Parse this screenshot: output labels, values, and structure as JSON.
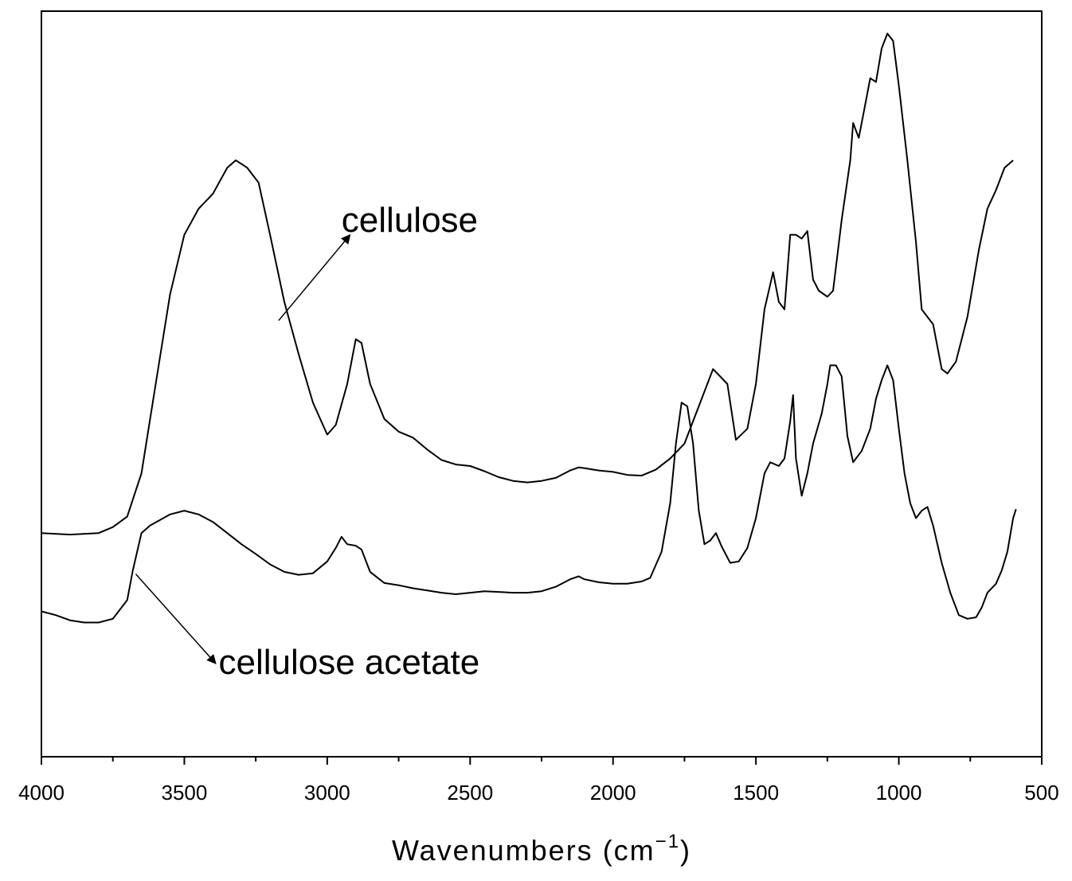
{
  "chart_data": {
    "type": "line",
    "xlabel": "Wavenumbers (cm",
    "xlabel_superscript": "−1",
    "xlabel_suffix": ")",
    "ylabel": "",
    "xlim": [
      4000,
      500
    ],
    "x_reversed": true,
    "ylim": [
      0,
      1
    ],
    "y_ticks_shown": false,
    "grid": false,
    "x_ticks": [
      4000,
      3500,
      3000,
      2500,
      2000,
      1500,
      1000,
      500
    ],
    "x_tick_labels": [
      "4000",
      "3500",
      "3000",
      "2500",
      "2000",
      "1500",
      "1000",
      "500"
    ],
    "series": [
      {
        "name": "cellulose",
        "points": [
          [
            4000,
            0.3
          ],
          [
            3900,
            0.298
          ],
          [
            3800,
            0.3
          ],
          [
            3750,
            0.308
          ],
          [
            3700,
            0.322
          ],
          [
            3650,
            0.38
          ],
          [
            3600,
            0.5
          ],
          [
            3550,
            0.62
          ],
          [
            3500,
            0.7
          ],
          [
            3450,
            0.735
          ],
          [
            3400,
            0.755
          ],
          [
            3350,
            0.79
          ],
          [
            3320,
            0.8
          ],
          [
            3280,
            0.79
          ],
          [
            3240,
            0.77
          ],
          [
            3200,
            0.7
          ],
          [
            3150,
            0.61
          ],
          [
            3100,
            0.54
          ],
          [
            3050,
            0.475
          ],
          [
            3000,
            0.432
          ],
          [
            2970,
            0.445
          ],
          [
            2930,
            0.5
          ],
          [
            2900,
            0.56
          ],
          [
            2880,
            0.555
          ],
          [
            2850,
            0.5
          ],
          [
            2800,
            0.453
          ],
          [
            2750,
            0.436
          ],
          [
            2700,
            0.428
          ],
          [
            2650,
            0.412
          ],
          [
            2600,
            0.398
          ],
          [
            2550,
            0.392
          ],
          [
            2500,
            0.39
          ],
          [
            2450,
            0.383
          ],
          [
            2400,
            0.375
          ],
          [
            2350,
            0.37
          ],
          [
            2300,
            0.368
          ],
          [
            2250,
            0.37
          ],
          [
            2200,
            0.374
          ],
          [
            2150,
            0.384
          ],
          [
            2120,
            0.388
          ],
          [
            2100,
            0.387
          ],
          [
            2050,
            0.384
          ],
          [
            2000,
            0.382
          ],
          [
            1950,
            0.378
          ],
          [
            1900,
            0.377
          ],
          [
            1850,
            0.385
          ],
          [
            1800,
            0.4
          ],
          [
            1750,
            0.42
          ],
          [
            1700,
            0.47
          ],
          [
            1650,
            0.52
          ],
          [
            1600,
            0.5
          ],
          [
            1570,
            0.425
          ],
          [
            1530,
            0.44
          ],
          [
            1500,
            0.5
          ],
          [
            1470,
            0.6
          ],
          [
            1440,
            0.65
          ],
          [
            1420,
            0.61
          ],
          [
            1400,
            0.6
          ],
          [
            1380,
            0.7
          ],
          [
            1360,
            0.7
          ],
          [
            1340,
            0.695
          ],
          [
            1320,
            0.705
          ],
          [
            1300,
            0.64
          ],
          [
            1280,
            0.625
          ],
          [
            1250,
            0.617
          ],
          [
            1230,
            0.625
          ],
          [
            1200,
            0.72
          ],
          [
            1170,
            0.8
          ],
          [
            1160,
            0.85
          ],
          [
            1140,
            0.83
          ],
          [
            1120,
            0.87
          ],
          [
            1100,
            0.91
          ],
          [
            1080,
            0.905
          ],
          [
            1060,
            0.95
          ],
          [
            1040,
            0.97
          ],
          [
            1020,
            0.96
          ],
          [
            1000,
            0.9
          ],
          [
            970,
            0.8
          ],
          [
            940,
            0.69
          ],
          [
            920,
            0.6
          ],
          [
            900,
            0.59
          ],
          [
            880,
            0.58
          ],
          [
            850,
            0.52
          ],
          [
            830,
            0.514
          ],
          [
            800,
            0.53
          ],
          [
            760,
            0.59
          ],
          [
            720,
            0.68
          ],
          [
            690,
            0.735
          ],
          [
            660,
            0.76
          ],
          [
            630,
            0.79
          ],
          [
            600,
            0.8
          ]
        ]
      },
      {
        "name": "cellulose acetate",
        "points": [
          [
            4000,
            0.195
          ],
          [
            3950,
            0.19
          ],
          [
            3900,
            0.183
          ],
          [
            3850,
            0.18
          ],
          [
            3800,
            0.18
          ],
          [
            3750,
            0.185
          ],
          [
            3700,
            0.21
          ],
          [
            3680,
            0.25
          ],
          [
            3650,
            0.3
          ],
          [
            3620,
            0.31
          ],
          [
            3550,
            0.325
          ],
          [
            3500,
            0.33
          ],
          [
            3450,
            0.325
          ],
          [
            3400,
            0.315
          ],
          [
            3350,
            0.3
          ],
          [
            3300,
            0.285
          ],
          [
            3250,
            0.272
          ],
          [
            3200,
            0.258
          ],
          [
            3150,
            0.248
          ],
          [
            3100,
            0.244
          ],
          [
            3050,
            0.246
          ],
          [
            3000,
            0.262
          ],
          [
            2970,
            0.28
          ],
          [
            2950,
            0.295
          ],
          [
            2930,
            0.285
          ],
          [
            2900,
            0.283
          ],
          [
            2880,
            0.278
          ],
          [
            2850,
            0.248
          ],
          [
            2800,
            0.233
          ],
          [
            2750,
            0.23
          ],
          [
            2700,
            0.226
          ],
          [
            2650,
            0.223
          ],
          [
            2600,
            0.22
          ],
          [
            2550,
            0.218
          ],
          [
            2500,
            0.22
          ],
          [
            2450,
            0.222
          ],
          [
            2400,
            0.221
          ],
          [
            2350,
            0.22
          ],
          [
            2300,
            0.22
          ],
          [
            2250,
            0.222
          ],
          [
            2200,
            0.228
          ],
          [
            2150,
            0.238
          ],
          [
            2120,
            0.242
          ],
          [
            2100,
            0.238
          ],
          [
            2050,
            0.234
          ],
          [
            2000,
            0.232
          ],
          [
            1950,
            0.232
          ],
          [
            1900,
            0.235
          ],
          [
            1870,
            0.24
          ],
          [
            1830,
            0.275
          ],
          [
            1800,
            0.34
          ],
          [
            1780,
            0.42
          ],
          [
            1760,
            0.475
          ],
          [
            1740,
            0.47
          ],
          [
            1720,
            0.42
          ],
          [
            1700,
            0.33
          ],
          [
            1680,
            0.285
          ],
          [
            1660,
            0.29
          ],
          [
            1640,
            0.3
          ],
          [
            1620,
            0.282
          ],
          [
            1590,
            0.26
          ],
          [
            1560,
            0.262
          ],
          [
            1530,
            0.28
          ],
          [
            1500,
            0.32
          ],
          [
            1470,
            0.38
          ],
          [
            1450,
            0.395
          ],
          [
            1420,
            0.39
          ],
          [
            1400,
            0.4
          ],
          [
            1380,
            0.45
          ],
          [
            1370,
            0.485
          ],
          [
            1360,
            0.4
          ],
          [
            1340,
            0.35
          ],
          [
            1320,
            0.38
          ],
          [
            1300,
            0.42
          ],
          [
            1270,
            0.46
          ],
          [
            1250,
            0.5
          ],
          [
            1240,
            0.525
          ],
          [
            1220,
            0.525
          ],
          [
            1200,
            0.51
          ],
          [
            1180,
            0.43
          ],
          [
            1160,
            0.395
          ],
          [
            1150,
            0.4
          ],
          [
            1130,
            0.41
          ],
          [
            1100,
            0.44
          ],
          [
            1080,
            0.48
          ],
          [
            1060,
            0.505
          ],
          [
            1040,
            0.525
          ],
          [
            1020,
            0.505
          ],
          [
            1000,
            0.44
          ],
          [
            980,
            0.38
          ],
          [
            960,
            0.34
          ],
          [
            940,
            0.32
          ],
          [
            920,
            0.33
          ],
          [
            900,
            0.335
          ],
          [
            880,
            0.31
          ],
          [
            850,
            0.26
          ],
          [
            820,
            0.22
          ],
          [
            790,
            0.19
          ],
          [
            760,
            0.185
          ],
          [
            730,
            0.187
          ],
          [
            710,
            0.2
          ],
          [
            690,
            0.22
          ],
          [
            660,
            0.232
          ],
          [
            640,
            0.25
          ],
          [
            620,
            0.275
          ],
          [
            600,
            0.32
          ],
          [
            590,
            0.332
          ]
        ]
      }
    ],
    "annotations": [
      {
        "text": "cellulose",
        "series": "cellulose",
        "arrow_from": [
          3170,
          0.585
        ],
        "arrow_to": [
          2920,
          0.7
        ],
        "text_at": [
          2950,
          0.72
        ]
      },
      {
        "text": "cellulose acetate",
        "series": "cellulose acetate",
        "arrow_from": [
          3670,
          0.245
        ],
        "arrow_to": [
          3390,
          0.125
        ],
        "text_at": [
          3380,
          0.127
        ]
      }
    ]
  }
}
